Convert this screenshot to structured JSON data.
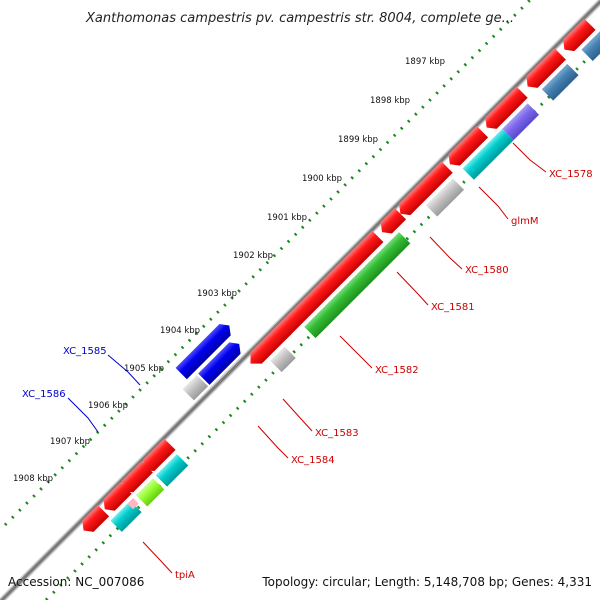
{
  "title": "Xanthomonas campestris pv. campestris str. 8004, complete ge...",
  "footer": {
    "accession": "Accession: NC_007086",
    "summary": "Topology: circular; Length: 5,148,708 bp; Genes: 4,331"
  },
  "ruler": {
    "ticks": [
      "1897 kbp",
      "1898 kbp",
      "1899 kbp",
      "1900 kbp",
      "1901 kbp",
      "1902 kbp",
      "1903 kbp",
      "1904 kbp",
      "1905 kbp",
      "1906 kbp",
      "1907 kbp",
      "1908 kbp"
    ]
  },
  "genes": {
    "forward": [
      "XC_1585",
      "XC_1586"
    ],
    "reverse": [
      "XC_1578",
      "glmM",
      "XC_1580",
      "XC_1581",
      "XC_1582",
      "XC_1583",
      "XC_1584",
      "tpiA"
    ]
  },
  "colors": {
    "cds": "#ff0000",
    "backbone": "#808080",
    "tick_dots": "#1a8a1a",
    "forward_gene": "#0000ee",
    "label_forward": "#0000cc",
    "label_reverse": "#cc0000",
    "grey_feature": "#c0c0c0",
    "cyan_feature": "#00cccc",
    "green_feature": "#33bb33",
    "steelblue_feature": "#4682b4",
    "purple_feature": "#7b68ee",
    "lime_feature": "#99ff33",
    "pink_feature": "#ffb6c1"
  }
}
